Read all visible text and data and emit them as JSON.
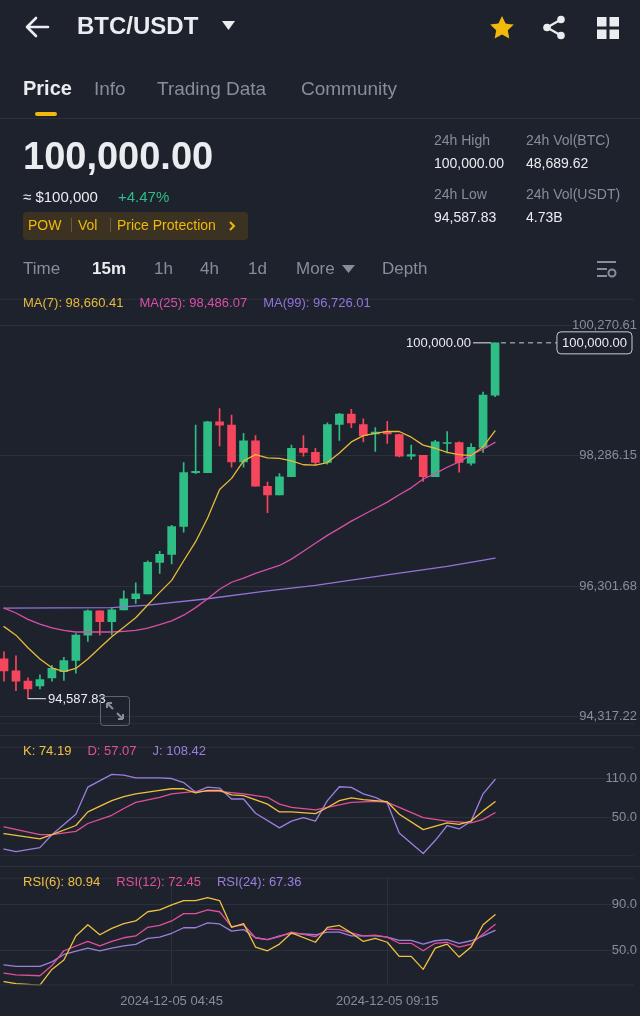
{
  "chart_data": [
    {
      "type": "other",
      "title": "BTC/USDT",
      "annotations": [
        "Price",
        "Info",
        "Trading Data",
        "Community",
        "100,000.00",
        "≈ $100,000",
        "+4.47%",
        "POW",
        "Vol",
        "Price Protection",
        "24h High",
        "100,000.00",
        "24h Vol(BTC)",
        "48,689.62",
        "24h Low",
        "94,587.83",
        "24h Vol(USDT)",
        "4.73B",
        "Time",
        "15m",
        "1h",
        "4h",
        "1d",
        "More",
        "Depth"
      ]
    },
    {
      "type": "candlestick",
      "x": [
        "2024-12-05T01:15",
        "2024-12-05T01:30",
        "2024-12-05T01:45",
        "2024-12-05T02:00",
        "2024-12-05T02:15",
        "2024-12-05T02:30",
        "2024-12-05T02:45",
        "2024-12-05T03:00",
        "2024-12-05T03:15",
        "2024-12-05T03:30",
        "2024-12-05T03:45",
        "2024-12-05T04:00",
        "2024-12-05T04:15",
        "2024-12-05T04:30",
        "2024-12-05T04:45",
        "2024-12-05T05:00",
        "2024-12-05T05:15",
        "2024-12-05T05:30",
        "2024-12-05T05:45",
        "2024-12-05T06:00",
        "2024-12-05T06:15",
        "2024-12-05T06:30",
        "2024-12-05T06:45",
        "2024-12-05T07:00",
        "2024-12-05T07:15",
        "2024-12-05T07:30",
        "2024-12-05T07:45",
        "2024-12-05T08:00",
        "2024-12-05T08:15",
        "2024-12-05T08:30",
        "2024-12-05T08:45",
        "2024-12-05T09:00",
        "2024-12-05T09:15",
        "2024-12-05T09:30",
        "2024-12-05T09:45",
        "2024-12-05T10:00",
        "2024-12-05T10:15",
        "2024-12-05T10:30",
        "2024-12-05T10:45",
        "2024-12-05T11:00",
        "2024-12-05T11:15",
        "2024-12-05T11:30"
      ],
      "ohlc": [
        [
          95193,
          95299,
          94856,
          95010
        ],
        [
          95010,
          95241,
          94711,
          94856
        ],
        [
          94856,
          94904,
          94587.83,
          94735
        ],
        [
          94783,
          94952,
          94735,
          94880
        ],
        [
          94904,
          95096,
          94856,
          95048
        ],
        [
          95000,
          95217,
          94865,
          95169
        ],
        [
          95169,
          95578,
          94976,
          95554
        ],
        [
          95554,
          95940,
          95458,
          95925
        ],
        [
          95925,
          95925,
          95554,
          95761
        ],
        [
          95761,
          95973,
          95554,
          95940
        ],
        [
          95940,
          96229,
          95940,
          96108
        ],
        [
          96108,
          96349,
          96036,
          96181
        ],
        [
          96181,
          96686,
          96181,
          96662
        ],
        [
          96662,
          96831,
          96494,
          96783
        ],
        [
          96783,
          97226,
          96638,
          97207
        ],
        [
          97207,
          98180,
          97120,
          98026
        ],
        [
          98026,
          98749,
          98011,
          98045
        ],
        [
          98026,
          98806,
          98026,
          98797
        ],
        [
          98797,
          98999,
          98431,
          98749
        ],
        [
          98749,
          98903,
          98108,
          98190
        ],
        [
          98190,
          98623,
          98108,
          98508
        ],
        [
          98508,
          98590,
          97819,
          97819
        ],
        [
          97819,
          97881,
          97419,
          97689
        ],
        [
          97689,
          98011,
          97689,
          97963
        ],
        [
          97963,
          98445,
          97963,
          98397
        ],
        [
          98397,
          98590,
          98276,
          98334
        ],
        [
          98334,
          98397,
          98132,
          98180
        ],
        [
          98180,
          98782,
          98156,
          98758
        ],
        [
          98758,
          98927,
          98517,
          98917
        ],
        [
          98917,
          98989,
          98710,
          98782
        ],
        [
          98758,
          98845,
          98493,
          98590
        ],
        [
          98614,
          98710,
          98349,
          98643
        ],
        [
          98652,
          98806,
          98469,
          98614
        ],
        [
          98604,
          98614,
          98267,
          98276
        ],
        [
          98276,
          98445,
          98228,
          98300
        ],
        [
          98291,
          98291,
          97891,
          97963
        ],
        [
          97963,
          98517,
          97963,
          98493
        ],
        [
          98469,
          98652,
          98325,
          98484
        ],
        [
          98484,
          98493,
          98035,
          98180
        ],
        [
          98170,
          98469,
          98141,
          98411
        ],
        [
          98411,
          99250,
          98334,
          99206
        ],
        [
          99206,
          100000,
          99182,
          100000
        ]
      ],
      "colors": [
        "#f6465d",
        "#f6465d",
        "#f6465d",
        "#2ebd85",
        "#2ebd85",
        "#2ebd85",
        "#2ebd85",
        "#2ebd85",
        "#f6465d",
        "#2ebd85",
        "#2ebd85",
        "#2ebd85",
        "#2ebd85",
        "#2ebd85",
        "#2ebd85",
        "#2ebd85",
        "#2ebd85",
        "#2ebd85",
        "#f6465d",
        "#f6465d",
        "#2ebd85",
        "#f6465d",
        "#f6465d",
        "#2ebd85",
        "#2ebd85",
        "#f6465d",
        "#f6465d",
        "#2ebd85",
        "#2ebd85",
        "#f6465d",
        "#f6465d",
        "#2ebd85",
        "#f6465d",
        "#f6465d",
        "#2ebd85",
        "#f6465d",
        "#2ebd85",
        "#2ebd85",
        "#f6465d",
        "#2ebd85",
        "#2ebd85",
        "#2ebd85"
      ],
      "series": [
        {
          "name": "MA(7): 98,660.41",
          "color": "#e8b93a",
          "type": "line",
          "values": [
            95684,
            95554,
            95362,
            95193,
            95058,
            95000,
            95048,
            95193,
            95362,
            95530,
            95675,
            95819,
            96012,
            96205,
            96388,
            96686,
            96976,
            97337,
            97770,
            97939,
            98204,
            98300,
            98252,
            98243,
            98204,
            98146,
            98141,
            98180,
            98325,
            98493,
            98590,
            98623,
            98652,
            98652,
            98565,
            98445,
            98397,
            98334,
            98300,
            98286,
            98421,
            98660.41
          ]
        },
        {
          "name": "MA(25): 98,486.07",
          "color": "#d94fa8",
          "type": "line",
          "values": [
            95964,
            95891,
            95795,
            95723,
            95665,
            95626,
            95602,
            95602,
            95602,
            95602,
            95612,
            95626,
            95660,
            95713,
            95771,
            95858,
            95973,
            96108,
            96253,
            96359,
            96421,
            96494,
            96556,
            96614,
            96711,
            96831,
            96951,
            97072,
            97178,
            97289,
            97385,
            97481,
            97578,
            97689,
            97795,
            97929,
            98011,
            98108,
            98190,
            98300,
            98382,
            98486.07
          ]
        },
        {
          "name": "MA(99): 96,726.01",
          "color": "#9274d8",
          "type": "line",
          "x": [
            "2024-12-05T01:15",
            "2024-12-05T03:30",
            "2024-12-05T04:15",
            "2024-12-05T05:30",
            "2024-12-05T06:45",
            "2024-12-05T07:45",
            "2024-12-05T09:15",
            "2024-12-05T10:30",
            "2024-12-05T11:30"
          ],
          "values": [
            95964,
            95974,
            96012,
            96108,
            96229,
            96310,
            96470,
            96600,
            96726.01
          ]
        }
      ],
      "xlim": [
        "2024-12-05T01:10",
        "2024-12-05T14:24"
      ],
      "ylim": [
        94200,
        100670
      ],
      "xticks": [
        {
          "value": "2024-12-05T04:45",
          "label": null
        },
        {
          "value": "2024-12-05T09:15",
          "label": null
        }
      ],
      "yticks": [
        {
          "value": 100270.61,
          "label": "100,270.61"
        },
        {
          "value": 98286.15,
          "label": "98,286.15"
        },
        {
          "value": 96301.68,
          "label": "96,301.68"
        },
        {
          "value": 94317.22,
          "label": "94,317.22"
        }
      ],
      "grid": true,
      "legend": "top left",
      "tick_labels": "y",
      "ref_lines": [
        {
          "axis": "y",
          "value": 100000,
          "label": "100,000.00",
          "line_style": "dashed",
          "color": "#c7ccd4"
        }
      ],
      "annotations": [
        {
          "text": "100,000.00",
          "x": "2024-12-05T11:30",
          "y": 100000
        },
        {
          "text": "94,587.83",
          "x": "2024-12-05T01:45",
          "y": 94587.83
        }
      ]
    },
    {
      "type": "line",
      "series": [
        {
          "name": "K: 74.19",
          "color": "#f0c040",
          "x": [
            "2024-12-05T01:15",
            "2024-12-05T02:00",
            "2024-12-05T02:15",
            "2024-12-05T02:45",
            "2024-12-05T03:00",
            "2024-12-05T03:30",
            "2024-12-05T03:45",
            "2024-12-05T04:00",
            "2024-12-05T04:30",
            "2024-12-05T04:45",
            "2024-12-05T05:00",
            "2024-12-05T05:15",
            "2024-12-05T05:30",
            "2024-12-05T05:45",
            "2024-12-05T06:00",
            "2024-12-05T06:15",
            "2024-12-05T06:45",
            "2024-12-05T07:00",
            "2024-12-05T07:15",
            "2024-12-05T07:45",
            "2024-12-05T08:00",
            "2024-12-05T08:15",
            "2024-12-05T08:30",
            "2024-12-05T08:45",
            "2024-12-05T09:15",
            "2024-12-05T09:30",
            "2024-12-05T10:00",
            "2024-12-05T10:30",
            "2024-12-05T10:45",
            "2024-12-05T11:00",
            "2024-12-05T11:15",
            "2024-12-05T11:30"
          ],
          "values": [
            24.8,
            16.9,
            23.2,
            37.4,
            58.4,
            75.8,
            82.1,
            86.3,
            91.6,
            94.2,
            94.2,
            87.9,
            91.6,
            91.6,
            84.7,
            83.7,
            70.5,
            58.4,
            58.4,
            55.8,
            65.3,
            75.8,
            80.0,
            77.4,
            74.2,
            54.7,
            31.1,
            41.6,
            39.0,
            44.2,
            60.0,
            74.19
          ]
        },
        {
          "name": "D: 57.07",
          "color": "#e0509a",
          "x": [
            "2024-12-05T01:15",
            "2024-12-05T02:00",
            "2024-12-05T02:15",
            "2024-12-05T02:45",
            "2024-12-05T03:00",
            "2024-12-05T03:30",
            "2024-12-05T03:45",
            "2024-12-05T04:00",
            "2024-12-05T04:30",
            "2024-12-05T04:45",
            "2024-12-05T05:15",
            "2024-12-05T05:45",
            "2024-12-05T06:15",
            "2024-12-05T06:45",
            "2024-12-05T07:00",
            "2024-12-05T07:15",
            "2024-12-05T07:45",
            "2024-12-05T08:00",
            "2024-12-05T08:30",
            "2024-12-05T09:00",
            "2024-12-05T09:15",
            "2024-12-05T09:30",
            "2024-12-05T10:00",
            "2024-12-05T10:30",
            "2024-12-05T11:00",
            "2024-12-05T11:15",
            "2024-12-05T11:30"
          ],
          "values": [
            35.3,
            23.2,
            23.2,
            28.4,
            40.5,
            53.2,
            63.7,
            73.1,
            81.0,
            86.3,
            90.0,
            90.0,
            86.3,
            81.0,
            70.5,
            65.3,
            61.6,
            65.3,
            73.1,
            74.7,
            73.1,
            65.3,
            49.5,
            44.2,
            41.6,
            46.8,
            57.07
          ]
        },
        {
          "name": "J: 108.42",
          "color": "#9b7fe0",
          "x": [
            "2024-12-05T01:15",
            "2024-12-05T01:30",
            "2024-12-05T02:00",
            "2024-12-05T02:15",
            "2024-12-05T02:45",
            "2024-12-05T03:00",
            "2024-12-05T03:30",
            "2024-12-05T03:45",
            "2024-12-05T04:00",
            "2024-12-05T04:30",
            "2024-12-05T04:45",
            "2024-12-05T05:00",
            "2024-12-05T05:15",
            "2024-12-05T05:30",
            "2024-12-05T05:45",
            "2024-12-05T06:00",
            "2024-12-05T06:15",
            "2024-12-05T06:30",
            "2024-12-05T07:00",
            "2024-12-05T07:15",
            "2024-12-05T07:30",
            "2024-12-05T07:45",
            "2024-12-05T08:00",
            "2024-12-05T08:15",
            "2024-12-05T08:30",
            "2024-12-05T08:45",
            "2024-12-05T09:00",
            "2024-12-05T09:15",
            "2024-12-05T09:30",
            "2024-12-05T09:45",
            "2024-12-05T10:00",
            "2024-12-05T10:15",
            "2024-12-05T10:30",
            "2024-12-05T10:45",
            "2024-12-05T11:00",
            "2024-12-05T11:15",
            "2024-12-05T11:30"
          ],
          "values": [
            1.1,
            -3.1,
            3.2,
            23.2,
            54.7,
            96.8,
            116.3,
            115.2,
            111.0,
            111.0,
            110.0,
            103.7,
            88.9,
            96.8,
            95.2,
            78.4,
            78.4,
            56.3,
            33.7,
            44.2,
            49.5,
            44.2,
            75.8,
            97.3,
            96.3,
            86.3,
            81.0,
            72.1,
            25.8,
            10.0,
            -5.8,
            14.2,
            37.4,
            32.1,
            44.2,
            86.3,
            108.42
          ]
        }
      ],
      "xlim": [
        "2024-12-05T01:10",
        "2024-12-05T14:24"
      ],
      "ylim": [
        -10,
        159
      ],
      "xticks": [
        {
          "value": "2024-12-05T04:45",
          "label": null
        },
        {
          "value": "2024-12-05T09:15",
          "label": null
        }
      ],
      "yticks": [
        {
          "value": 110,
          "label": "110.0"
        },
        {
          "value": 50,
          "label": "50.0"
        }
      ],
      "grid": true,
      "legend": "top left",
      "tick_labels": "y"
    },
    {
      "type": "line",
      "series": [
        {
          "name": "RSI(6): 80.94",
          "color": "#f0c040",
          "x": [
            "2024-12-05T01:15",
            "2024-12-05T01:30",
            "2024-12-05T02:00",
            "2024-12-05T02:15",
            "2024-12-05T02:30",
            "2024-12-05T02:45",
            "2024-12-05T03:00",
            "2024-12-05T03:15",
            "2024-12-05T03:30",
            "2024-12-05T03:45",
            "2024-12-05T04:00",
            "2024-12-05T04:15",
            "2024-12-05T04:30",
            "2024-12-05T04:45",
            "2024-12-05T05:00",
            "2024-12-05T05:15",
            "2024-12-05T05:30",
            "2024-12-05T05:45",
            "2024-12-05T06:00",
            "2024-12-05T06:15",
            "2024-12-05T06:30",
            "2024-12-05T06:45",
            "2024-12-05T07:00",
            "2024-12-05T07:15",
            "2024-12-05T07:45",
            "2024-12-05T08:00",
            "2024-12-05T08:15",
            "2024-12-05T08:30",
            "2024-12-05T08:45",
            "2024-12-05T09:00",
            "2024-12-05T09:15",
            "2024-12-05T09:30",
            "2024-12-05T09:45",
            "2024-12-05T10:00",
            "2024-12-05T10:15",
            "2024-12-05T10:30",
            "2024-12-05T10:45",
            "2024-12-05T11:00",
            "2024-12-05T11:15",
            "2024-12-05T11:30"
          ],
          "values": [
            22.8,
            21.1,
            19.8,
            33.4,
            41.5,
            62.5,
            72.2,
            63.5,
            69.0,
            73.2,
            75.5,
            83.5,
            85.2,
            89.4,
            93.2,
            93.2,
            95.8,
            93.2,
            70.0,
            73.2,
            52.8,
            49.6,
            55.4,
            65.1,
            57.0,
            70.0,
            71.6,
            65.1,
            57.7,
            60.3,
            57.0,
            44.7,
            44.7,
            33.4,
            51.9,
            55.4,
            44.1,
            52.8,
            72.2,
            80.94
          ]
        },
        {
          "name": "RSI(12): 72.45",
          "color": "#e0509a",
          "x": [
            "2024-12-05T01:15",
            "2024-12-05T01:30",
            "2024-12-05T02:00",
            "2024-12-05T02:15",
            "2024-12-05T02:30",
            "2024-12-05T03:00",
            "2024-12-05T03:15",
            "2024-12-05T03:30",
            "2024-12-05T03:45",
            "2024-12-05T04:00",
            "2024-12-05T04:15",
            "2024-12-05T04:30",
            "2024-12-05T04:45",
            "2024-12-05T05:00",
            "2024-12-05T05:15",
            "2024-12-05T05:30",
            "2024-12-05T05:45",
            "2024-12-05T06:00",
            "2024-12-05T06:15",
            "2024-12-05T06:30",
            "2024-12-05T06:45",
            "2024-12-05T07:00",
            "2024-12-05T07:15",
            "2024-12-05T07:45",
            "2024-12-05T08:00",
            "2024-12-05T08:15",
            "2024-12-05T08:30",
            "2024-12-05T08:45",
            "2024-12-05T09:00",
            "2024-12-05T09:15",
            "2024-12-05T09:30",
            "2024-12-05T09:45",
            "2024-12-05T10:00",
            "2024-12-05T10:15",
            "2024-12-05T10:30",
            "2024-12-05T10:45",
            "2024-12-05T11:00",
            "2024-12-05T11:15",
            "2024-12-05T11:30"
          ],
          "values": [
            30.2,
            28.6,
            27.9,
            36.7,
            49.6,
            57.7,
            53.8,
            57.7,
            60.9,
            62.5,
            70.0,
            71.6,
            75.5,
            81.9,
            81.9,
            85.2,
            83.5,
            70.6,
            72.2,
            60.9,
            59.3,
            61.9,
            65.8,
            61.9,
            68.3,
            68.0,
            65.1,
            62.5,
            63.2,
            61.5,
            56.1,
            56.1,
            49.6,
            56.1,
            57.0,
            52.8,
            55.4,
            64.1,
            72.45
          ]
        },
        {
          "name": "RSI(24): 67.36",
          "color": "#9b7fe0",
          "x": [
            "2024-12-05T01:15",
            "2024-12-05T01:30",
            "2024-12-05T02:00",
            "2024-12-05T02:15",
            "2024-12-05T02:30",
            "2024-12-05T03:00",
            "2024-12-05T03:15",
            "2024-12-05T03:30",
            "2024-12-05T03:45",
            "2024-12-05T04:00",
            "2024-12-05T04:15",
            "2024-12-05T04:30",
            "2024-12-05T04:45",
            "2024-12-05T05:00",
            "2024-12-05T05:15",
            "2024-12-05T05:30",
            "2024-12-05T05:45",
            "2024-12-05T06:00",
            "2024-12-05T06:15",
            "2024-12-05T06:30",
            "2024-12-05T06:45",
            "2024-12-05T07:00",
            "2024-12-05T07:15",
            "2024-12-05T07:45",
            "2024-12-05T08:00",
            "2024-12-05T08:15",
            "2024-12-05T08:30",
            "2024-12-05T08:45",
            "2024-12-05T09:00",
            "2024-12-05T09:15",
            "2024-12-05T09:30",
            "2024-12-05T09:45",
            "2024-12-05T10:00",
            "2024-12-05T10:15",
            "2024-12-05T10:30",
            "2024-12-05T10:45",
            "2024-12-05T11:00",
            "2024-12-05T11:15",
            "2024-12-05T11:30"
          ],
          "values": [
            37.3,
            36.0,
            36.0,
            39.9,
            46.4,
            51.9,
            49.6,
            51.9,
            53.8,
            55.1,
            60.3,
            61.5,
            64.8,
            69.6,
            69.6,
            73.8,
            72.9,
            66.7,
            68.0,
            60.9,
            59.3,
            62.5,
            64.8,
            63.5,
            65.8,
            65.8,
            62.5,
            62.5,
            62.5,
            61.5,
            58.6,
            58.6,
            55.4,
            58.3,
            59.3,
            56.1,
            58.3,
            62.5,
            67.36
          ]
        }
      ],
      "xlim": [
        "2024-12-05T01:10",
        "2024-12-05T14:24"
      ],
      "ylim": [
        19.5,
        113
      ],
      "xticks": [
        {
          "value": "2024-12-05T04:45",
          "label": "2024-12-05 04:45"
        },
        {
          "value": "2024-12-05T09:15",
          "label": "2024-12-05 09:15"
        }
      ],
      "yticks": [
        {
          "value": 90,
          "label": "90.0"
        },
        {
          "value": 50,
          "label": "50.0"
        }
      ],
      "grid": true,
      "legend": "top left"
    }
  ]
}
